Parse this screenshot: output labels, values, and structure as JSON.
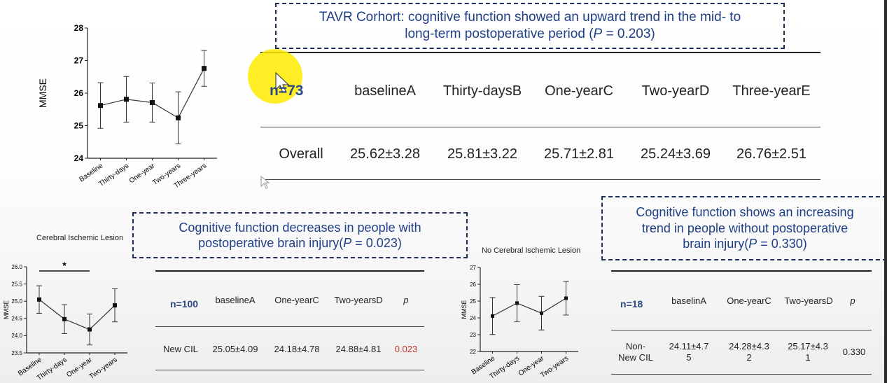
{
  "chart_data": [
    {
      "type": "line",
      "ylabel": "MMSE",
      "categories": [
        "Baseline",
        "Thirty-days",
        "One-year",
        "Two-years",
        "Three-years"
      ],
      "values": [
        25.62,
        25.81,
        25.71,
        25.24,
        26.76
      ],
      "error": [
        0.7,
        0.7,
        0.6,
        0.8,
        0.55
      ],
      "ylim": [
        24,
        28
      ],
      "yticks": [
        "24",
        "25",
        "26",
        "27",
        "28"
      ]
    },
    {
      "type": "line",
      "title": "Cerebral Ischemic Lesion",
      "ylabel": "MMSE",
      "categories": [
        "Baseline",
        "Thirty-days",
        "One-year",
        "Two-years"
      ],
      "values": [
        25.05,
        24.48,
        24.18,
        24.88
      ],
      "error": [
        0.4,
        0.42,
        0.45,
        0.48
      ],
      "ylim": [
        23.5,
        26.0
      ],
      "yticks": [
        "23.5",
        "24.0",
        "24.5",
        "25.0",
        "25.5",
        "26.0"
      ],
      "annotation": "*"
    },
    {
      "type": "line",
      "title": "No Cerebral Ischemic Lesion",
      "ylabel": "MMSE",
      "categories": [
        "Baseline",
        "Thirty-days",
        "One-year",
        "Two-years"
      ],
      "values": [
        24.11,
        24.88,
        24.28,
        25.17
      ],
      "error": [
        1.1,
        1.1,
        1.0,
        1.0
      ],
      "ylim": [
        22,
        27
      ],
      "yticks": [
        "22",
        "23",
        "24",
        "25",
        "26",
        "27"
      ]
    }
  ],
  "callout_top": {
    "line1": "TAVR Corhort: cognitive function showed an upward trend in the mid- to",
    "line2_a": "long-term postoperative period (",
    "line2_p": "P",
    "line2_b": " = 0.203)"
  },
  "callout_mid": {
    "line1": "Cognitive function decreases in people with",
    "line2_a": "postoperative brain injury(",
    "line2_p": "P",
    "line2_b": " = 0.023)"
  },
  "callout_right": {
    "line1": "Cognitive function shows an increasing",
    "line2": "trend in people without postoperative",
    "line3_a": "brain injury(",
    "line3_p": "P",
    "line3_b": " = 0.330)"
  },
  "table_main": {
    "n": "n=73",
    "headers": [
      "baselineA",
      "Thirty-daysB",
      "One-yearC",
      "Two-yearD",
      "Three-yearE"
    ],
    "row_label": "Overall",
    "values": [
      "25.62±3.28",
      "25.81±3.22",
      "25.71±2.81",
      "25.24±3.69",
      "26.76±2.51"
    ]
  },
  "table_cil": {
    "n": "n=100",
    "headers": [
      "baselineA",
      "One-yearC",
      "Two-yearsD",
      "p"
    ],
    "row_label": "New CIL",
    "values": [
      "25.05±4.09",
      "24.18±4.78",
      "24.88±4.81"
    ],
    "p": "0.023"
  },
  "table_nocil": {
    "n": "n=18",
    "headers": [
      "baselinA",
      "One-yearC",
      "Two-yearsD",
      "p"
    ],
    "row_label_1": "Non-",
    "row_label_2": "New CIL",
    "values_1": [
      "24.11±4.7",
      "24.28±4.3",
      "25.17±4.3"
    ],
    "values_2": [
      "5",
      "2",
      "1"
    ],
    "p": "0.330"
  }
}
